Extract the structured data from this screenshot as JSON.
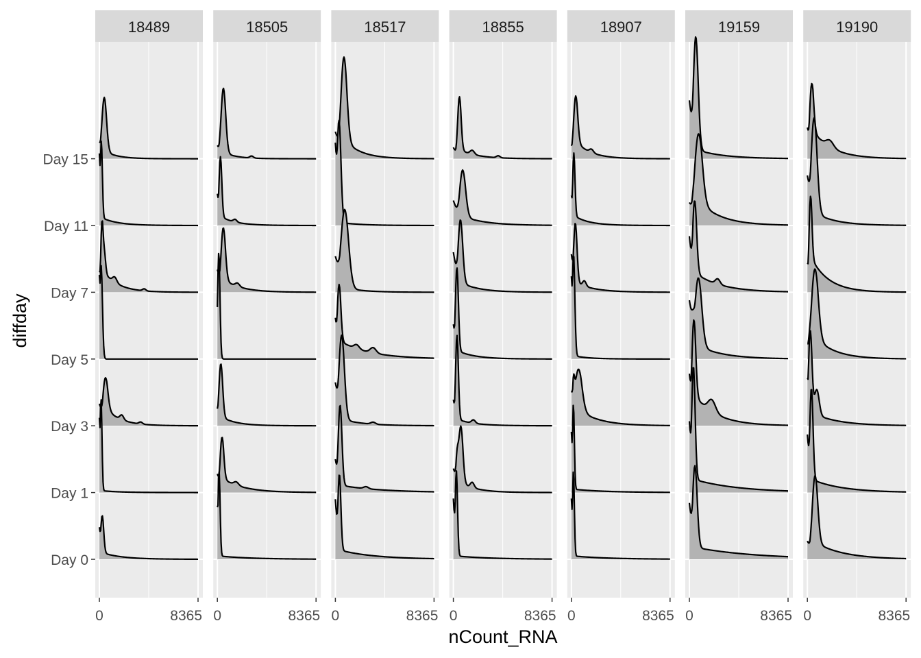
{
  "chart_data": {
    "type": "ridgeline",
    "facet_by": "donor",
    "xlabel": "nCount_RNA",
    "ylabel": "diffday",
    "x_tick_labels": [
      "0",
      "8365"
    ],
    "xlim": [
      0,
      8365
    ],
    "y_categories": [
      "Day 0",
      "Day 1",
      "Day 3",
      "Day 5",
      "Day 7",
      "Day 11",
      "Day 15"
    ],
    "fill_color": "#b3b3b3",
    "panel_background": "#ebebeb",
    "strip_background": "#d9d9d9",
    "grid": true,
    "note": "",
    "panels": [
      {
        "label": "18489",
        "ridges": [
          {
            "category": "Day 0",
            "start": 0.8,
            "peak": 0.6,
            "mode_x": 230,
            "peak_width": 130,
            "tail_weight": 0.1,
            "tail_scale": 1700,
            "bumps": []
          },
          {
            "category": "Day 1",
            "start": 0.8,
            "peak": 1.4,
            "mode_x": 140,
            "peak_width": 80,
            "tail_weight": 0.03,
            "tail_scale": 1500,
            "bumps": []
          },
          {
            "category": "Day 3",
            "start": 0.6,
            "peak": 0.55,
            "mode_x": 470,
            "peak_width": 220,
            "tail_weight": 0.28,
            "tail_scale": 1300,
            "bumps": [
              [
                1900,
                0.07,
                160
              ],
              [
                3500,
                0.03,
                150
              ]
            ]
          },
          {
            "category": "Day 5",
            "start": 0.9,
            "peak": 1.4,
            "mode_x": 150,
            "peak_width": 110,
            "tail_weight": 0.0,
            "tail_scale": 400,
            "bumps": []
          },
          {
            "category": "Day 7",
            "start": 0.4,
            "peak": 0.8,
            "mode_x": 200,
            "peak_width": 100,
            "tail_weight": 0.35,
            "tail_scale": 1300,
            "bumps": [
              [
                420,
                0.3,
                110
              ],
              [
                1300,
                0.08,
                180
              ],
              [
                3800,
                0.03,
                140
              ]
            ]
          },
          {
            "category": "Day 11",
            "start": 0.9,
            "peak": 1.2,
            "mode_x": 160,
            "peak_width": 90,
            "tail_weight": 0.12,
            "tail_scale": 1400,
            "bumps": []
          },
          {
            "category": "Day 15",
            "start": 0.3,
            "peak": 0.85,
            "mode_x": 400,
            "peak_width": 200,
            "tail_weight": 0.12,
            "tail_scale": 1100,
            "bumps": []
          }
        ]
      },
      {
        "label": "18505",
        "ridges": [
          {
            "category": "Day 0",
            "start": 0.6,
            "peak": 1.3,
            "mode_x": 140,
            "peak_width": 90,
            "tail_weight": 0.05,
            "tail_scale": 2800,
            "bumps": []
          },
          {
            "category": "Day 1",
            "start": 0.4,
            "peak": 0.7,
            "mode_x": 370,
            "peak_width": 160,
            "tail_weight": 0.22,
            "tail_scale": 1800,
            "bumps": [
              [
                1600,
                0.05,
                200
              ]
            ]
          },
          {
            "category": "Day 3",
            "start": 0.3,
            "peak": 0.85,
            "mode_x": 280,
            "peak_width": 160,
            "tail_weight": 0.14,
            "tail_scale": 1300,
            "bumps": []
          },
          {
            "category": "Day 5",
            "start": 0.4,
            "peak": 1.6,
            "mode_x": 120,
            "peak_width": 100,
            "tail_weight": 0.0,
            "tail_scale": 400,
            "bumps": []
          },
          {
            "category": "Day 7",
            "start": 0.4,
            "peak": 0.85,
            "mode_x": 480,
            "peak_width": 190,
            "tail_weight": 0.2,
            "tail_scale": 1500,
            "bumps": [
              [
                1700,
                0.05,
                180
              ]
            ]
          },
          {
            "category": "Day 11",
            "start": 0.5,
            "peak": 0.95,
            "mode_x": 250,
            "peak_width": 120,
            "tail_weight": 0.14,
            "tail_scale": 1300,
            "bumps": [
              [
                1500,
                0.04,
                150
              ]
            ]
          },
          {
            "category": "Day 15",
            "start": 0.2,
            "peak": 1.0,
            "mode_x": 500,
            "peak_width": 200,
            "tail_weight": 0.1,
            "tail_scale": 1100,
            "bumps": [
              [
                2900,
                0.03,
                150
              ]
            ]
          }
        ]
      },
      {
        "label": "18517",
        "ridges": [
          {
            "category": "Day 0",
            "start": 0.75,
            "peak": 1.2,
            "mode_x": 330,
            "peak_width": 130,
            "tail_weight": 0.14,
            "tail_scale": 3000,
            "bumps": []
          },
          {
            "category": "Day 1",
            "start": 0.4,
            "peak": 1.25,
            "mode_x": 390,
            "peak_width": 160,
            "tail_weight": 0.11,
            "tail_scale": 3500,
            "bumps": [
              [
                2600,
                0.03,
                200
              ]
            ]
          },
          {
            "category": "Day 3",
            "start": 0.5,
            "peak": 1.3,
            "mode_x": 520,
            "peak_width": 240,
            "tail_weight": 0.1,
            "tail_scale": 1900,
            "bumps": [
              [
                3200,
                0.03,
                200
              ]
            ]
          },
          {
            "category": "Day 5",
            "start": 0.65,
            "peak": 0.95,
            "mode_x": 290,
            "peak_width": 160,
            "tail_weight": 0.28,
            "tail_scale": 2600,
            "bumps": [
              [
                3200,
                0.08,
                250
              ],
              [
                1800,
                0.06,
                220
              ]
            ]
          },
          {
            "category": "Day 7",
            "start": 0.45,
            "peak": 1.2,
            "mode_x": 780,
            "peak_width": 330,
            "tail_weight": 0.07,
            "tail_scale": 1600,
            "bumps": []
          },
          {
            "category": "Day 11",
            "start": 0.8,
            "peak": 1.55,
            "mode_x": 300,
            "peak_width": 170,
            "tail_weight": 0.05,
            "tail_scale": 1700,
            "bumps": []
          },
          {
            "category": "Day 15",
            "start": 0.3,
            "peak": 1.35,
            "mode_x": 700,
            "peak_width": 260,
            "tail_weight": 0.3,
            "tail_scale": 1400,
            "bumps": []
          }
        ]
      },
      {
        "label": "18855",
        "ridges": [
          {
            "category": "Day 0",
            "start": 0.7,
            "peak": 1.3,
            "mode_x": 250,
            "peak_width": 100,
            "tail_weight": 0.05,
            "tail_scale": 3000,
            "bumps": []
          },
          {
            "category": "Day 1",
            "start": 0.4,
            "peak": 0.9,
            "mode_x": 620,
            "peak_width": 180,
            "tail_weight": 0.15,
            "tail_scale": 1400,
            "bumps": [
              [
                300,
                0.45,
                120
              ],
              [
                1600,
                0.08,
                160
              ]
            ]
          },
          {
            "category": "Day 3",
            "start": 0.3,
            "peak": 1.3,
            "mode_x": 300,
            "peak_width": 120,
            "tail_weight": 0.1,
            "tail_scale": 1500,
            "bumps": [
              [
                1700,
                0.05,
                160
              ]
            ]
          },
          {
            "category": "Day 5",
            "start": 0.4,
            "peak": 1.3,
            "mode_x": 290,
            "peak_width": 130,
            "tail_weight": 0.13,
            "tail_scale": 1500,
            "bumps": []
          },
          {
            "category": "Day 7",
            "start": 0.6,
            "peak": 1.0,
            "mode_x": 580,
            "peak_width": 200,
            "tail_weight": 0.15,
            "tail_scale": 1600,
            "bumps": []
          },
          {
            "category": "Day 11",
            "start": 0.5,
            "peak": 0.75,
            "mode_x": 760,
            "peak_width": 260,
            "tail_weight": 0.14,
            "tail_scale": 2000,
            "bumps": []
          },
          {
            "category": "Day 15",
            "start": 0.2,
            "peak": 0.85,
            "mode_x": 500,
            "peak_width": 150,
            "tail_weight": 0.14,
            "tail_scale": 1500,
            "bumps": [
              [
                1600,
                0.06,
                180
              ],
              [
                3800,
                0.03,
                150
              ]
            ]
          }
        ]
      },
      {
        "label": "18907",
        "ridges": [
          {
            "category": "Day 0",
            "start": 0.7,
            "peak": 1.3,
            "mode_x": 170,
            "peak_width": 80,
            "tail_weight": 0.05,
            "tail_scale": 3000,
            "bumps": []
          },
          {
            "category": "Day 1",
            "start": 0.7,
            "peak": 1.3,
            "mode_x": 170,
            "peak_width": 80,
            "tail_weight": 0.05,
            "tail_scale": 2800,
            "bumps": []
          },
          {
            "category": "Day 3",
            "start": 0.75,
            "peak": 0.7,
            "mode_x": 550,
            "peak_width": 320,
            "tail_weight": 0.25,
            "tail_scale": 1800,
            "bumps": [
              [
                180,
                0.4,
                90
              ]
            ]
          },
          {
            "category": "Day 5",
            "start": 0.8,
            "peak": 1.55,
            "mode_x": 180,
            "peak_width": 110,
            "tail_weight": 0.05,
            "tail_scale": 1300,
            "bumps": []
          },
          {
            "category": "Day 7",
            "start": 0.6,
            "peak": 0.95,
            "mode_x": 320,
            "peak_width": 150,
            "tail_weight": 0.15,
            "tail_scale": 1600,
            "bumps": [
              [
                1100,
                0.08,
                150
              ]
            ]
          },
          {
            "category": "Day 11",
            "start": 0.45,
            "peak": 1.0,
            "mode_x": 200,
            "peak_width": 100,
            "tail_weight": 0.15,
            "tail_scale": 1300,
            "bumps": []
          },
          {
            "category": "Day 15",
            "start": 0.25,
            "peak": 0.78,
            "mode_x": 340,
            "peak_width": 180,
            "tail_weight": 0.27,
            "tail_scale": 1300,
            "bumps": [
              [
                1700,
                0.05,
                170
              ]
            ]
          }
        ]
      },
      {
        "label": "19159",
        "ridges": [
          {
            "category": "Day 0",
            "start": 0.65,
            "peak": 1.3,
            "mode_x": 450,
            "peak_width": 200,
            "tail_weight": 0.18,
            "tail_scale": 5200,
            "bumps": []
          },
          {
            "category": "Day 1",
            "start": 0.6,
            "peak": 1.78,
            "mode_x": 330,
            "peak_width": 150,
            "tail_weight": 0.2,
            "tail_scale": 3800,
            "bumps": []
          },
          {
            "category": "Day 3",
            "start": 0.6,
            "peak": 1.3,
            "mode_x": 350,
            "peak_width": 170,
            "tail_weight": 0.48,
            "tail_scale": 1900,
            "bumps": [
              [
                1900,
                0.18,
                320
              ]
            ]
          },
          {
            "category": "Day 5",
            "start": 0.8,
            "peak": 1.1,
            "mode_x": 730,
            "peak_width": 300,
            "tail_weight": 0.2,
            "tail_scale": 2200,
            "bumps": [
              [
                250,
                0.2,
                120
              ]
            ]
          },
          {
            "category": "Day 7",
            "start": 0.7,
            "peak": 1.2,
            "mode_x": 420,
            "peak_width": 180,
            "tail_weight": 0.3,
            "tail_scale": 2200,
            "bumps": [
              [
                2400,
                0.08,
                200
              ]
            ]
          },
          {
            "category": "Day 11",
            "start": 0.3,
            "peak": 1.15,
            "mode_x": 730,
            "peak_width": 340,
            "tail_weight": 0.38,
            "tail_scale": 1900,
            "bumps": []
          },
          {
            "category": "Day 15",
            "start": 0.5,
            "peak": 1.75,
            "mode_x": 530,
            "peak_width": 210,
            "tail_weight": 0.14,
            "tail_scale": 2300,
            "bumps": []
          }
        ]
      },
      {
        "label": "19190",
        "ridges": [
          {
            "category": "Day 0",
            "start": 0.25,
            "peak": 1.1,
            "mode_x": 620,
            "peak_width": 240,
            "tail_weight": 0.26,
            "tail_scale": 2400,
            "bumps": []
          },
          {
            "category": "Day 1",
            "start": 0.6,
            "peak": 1.45,
            "mode_x": 330,
            "peak_width": 140,
            "tail_weight": 0.2,
            "tail_scale": 2600,
            "bumps": []
          },
          {
            "category": "Day 3",
            "start": 0.55,
            "peak": 1.3,
            "mode_x": 230,
            "peak_width": 150,
            "tail_weight": 0.21,
            "tail_scale": 2200,
            "bumps": [
              [
                800,
                0.38,
                200
              ]
            ]
          },
          {
            "category": "Day 5",
            "start": 0.2,
            "peak": 1.15,
            "mode_x": 600,
            "peak_width": 300,
            "tail_weight": 0.34,
            "tail_scale": 1700,
            "bumps": []
          },
          {
            "category": "Day 7",
            "start": 0.4,
            "peak": 1.1,
            "mode_x": 240,
            "peak_width": 130,
            "tail_weight": 0.55,
            "tail_scale": 1500,
            "bumps": []
          },
          {
            "category": "Day 11",
            "start": 0.5,
            "peak": 1.5,
            "mode_x": 550,
            "peak_width": 260,
            "tail_weight": 0.2,
            "tail_scale": 1800,
            "bumps": []
          },
          {
            "category": "Day 15",
            "start": 0.55,
            "peak": 0.85,
            "mode_x": 330,
            "peak_width": 180,
            "tail_weight": 0.45,
            "tail_scale": 1700,
            "bumps": [
              [
                1900,
                0.1,
                320
              ]
            ]
          }
        ]
      }
    ]
  }
}
